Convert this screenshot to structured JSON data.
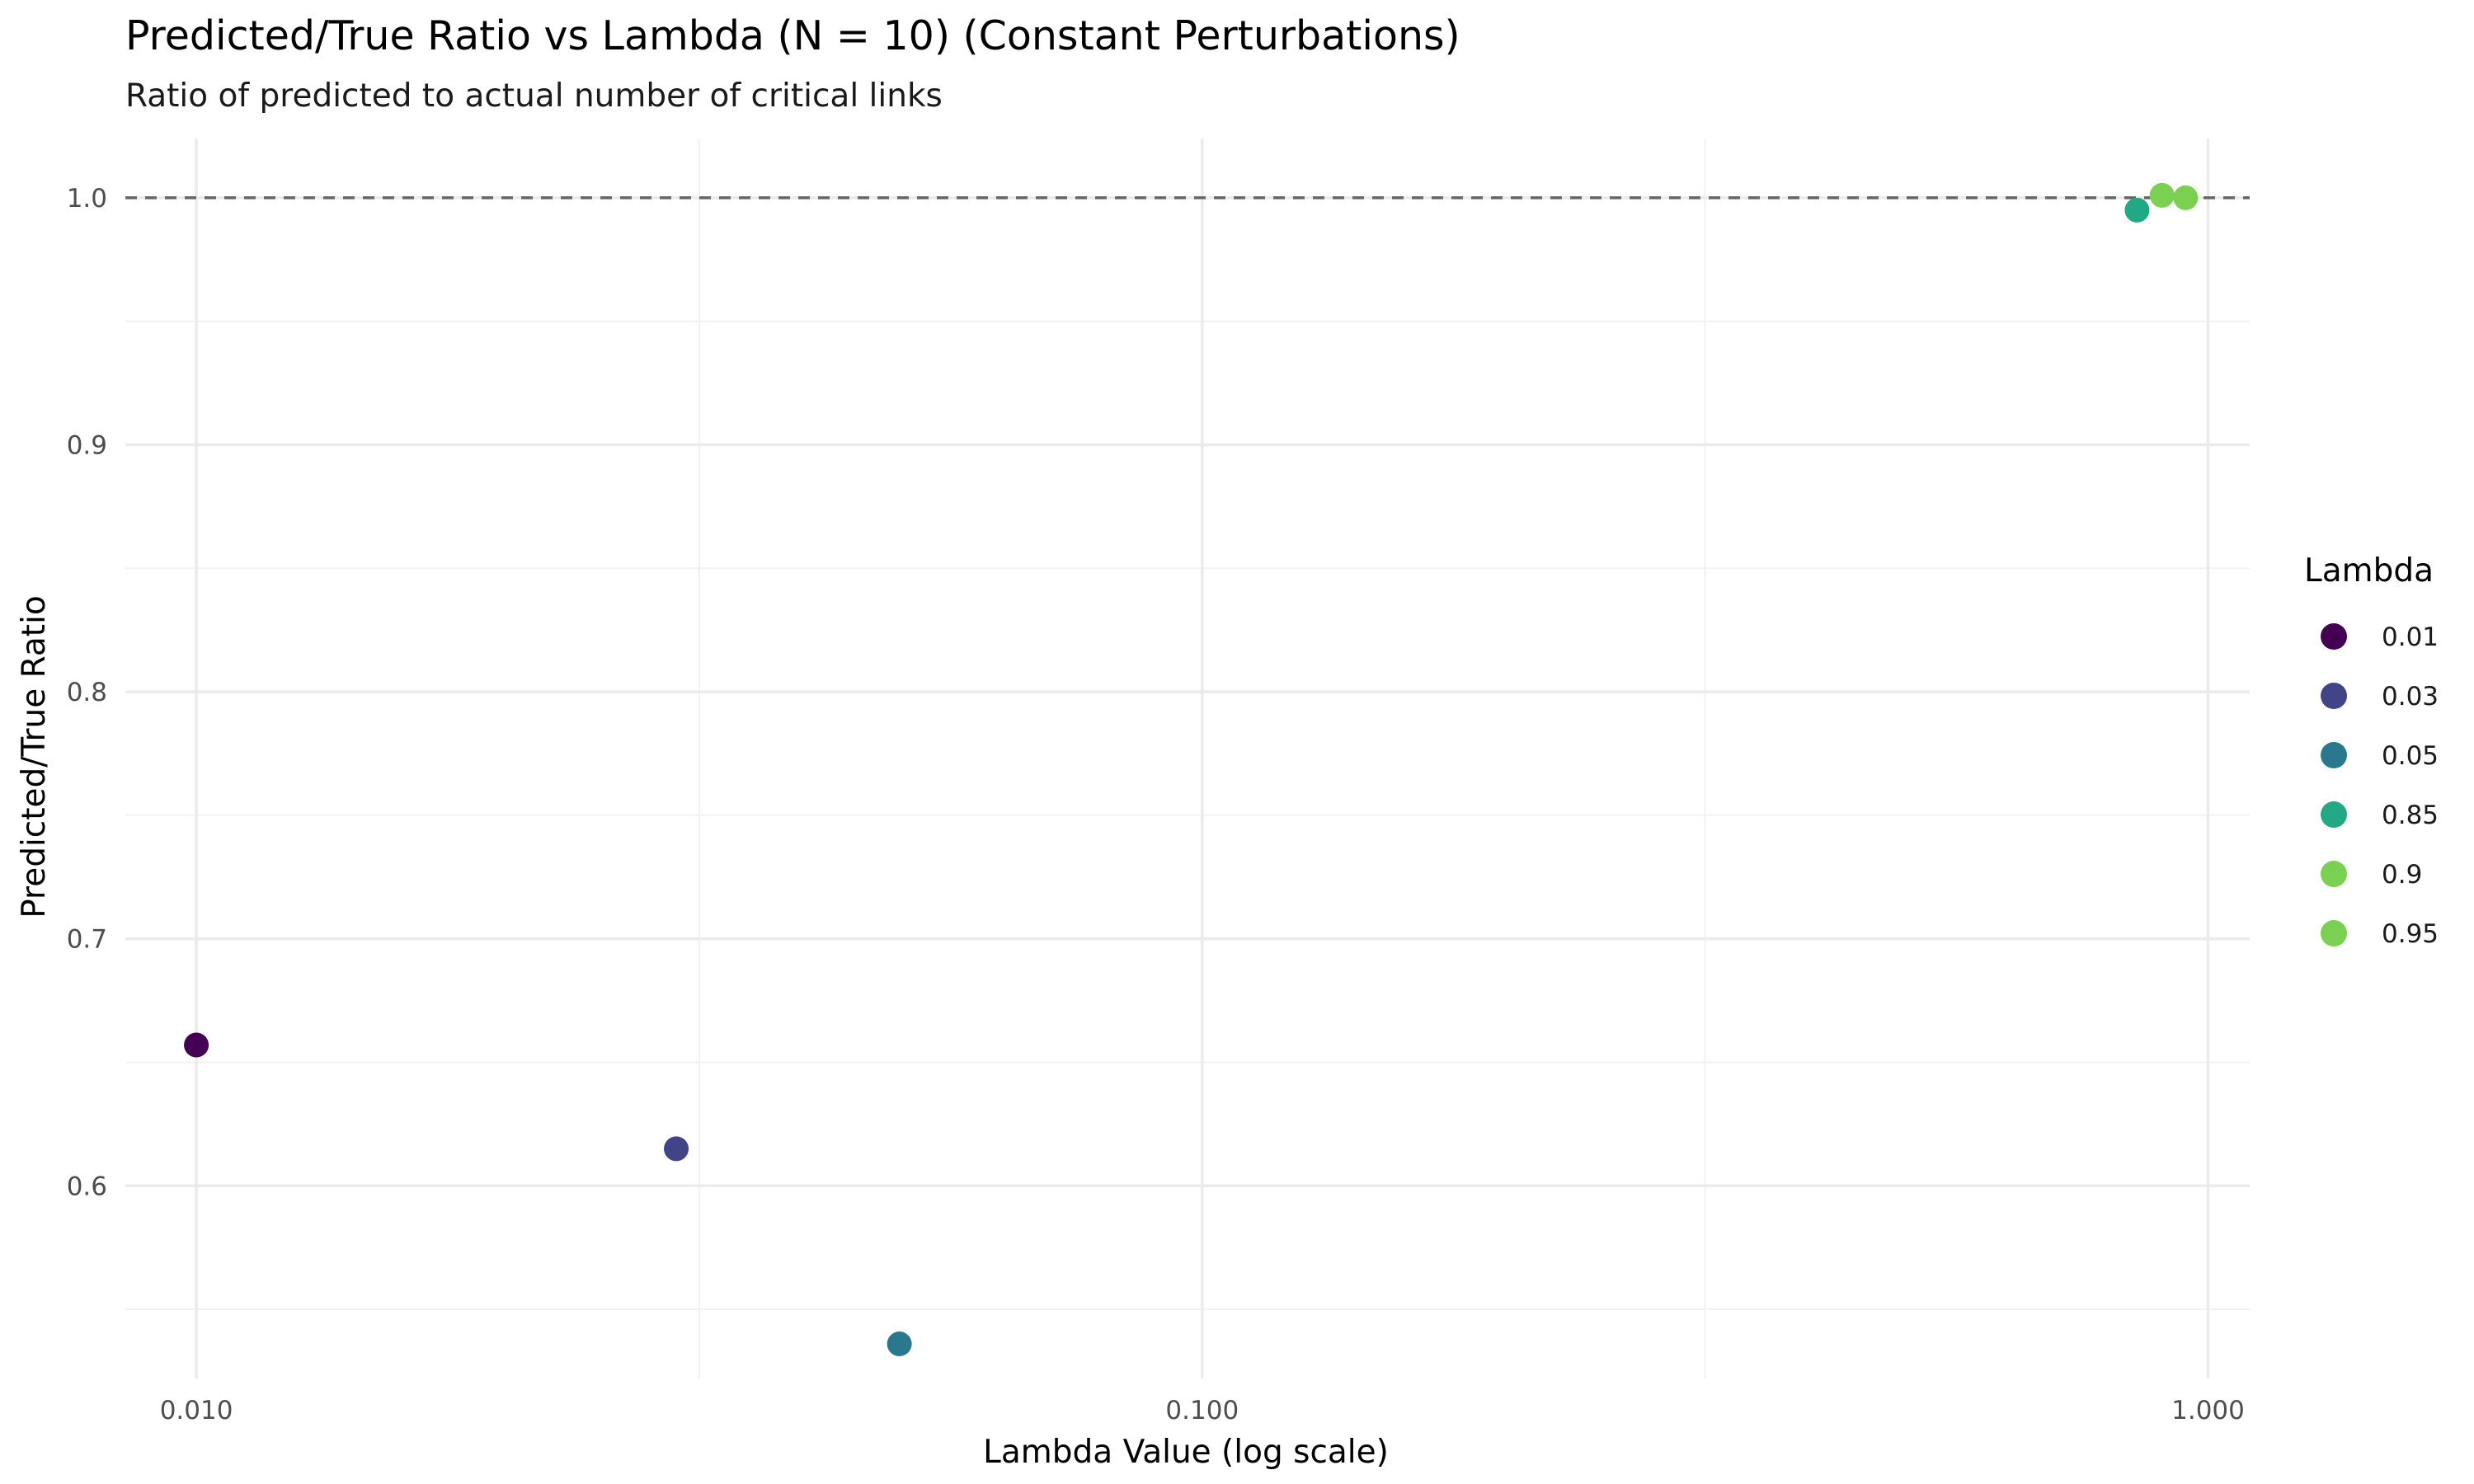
{
  "chart_data": {
    "type": "scatter",
    "title": "Predicted/True Ratio vs Lambda (N = 10) (Constant Perturbations)",
    "subtitle": "Ratio of predicted to actual number of critical links",
    "xlabel": "Lambda Value (log scale)",
    "ylabel": "Predicted/True Ratio",
    "x_scale": "log10",
    "xlim": [
      0.0085,
      1.1
    ],
    "ylim": [
      0.522,
      1.024
    ],
    "x_ticks": [
      0.01,
      0.1,
      1.0
    ],
    "x_tick_labels": [
      "0.010",
      "0.100",
      "1.000"
    ],
    "y_ticks": [
      0.6,
      0.7,
      0.8,
      0.9,
      1.0
    ],
    "y_tick_labels": [
      "0.6",
      "0.7",
      "0.8",
      "0.9",
      "1.0"
    ],
    "grid": true,
    "reference_line": {
      "y": 1.0,
      "style": "dashed",
      "color": "#666666"
    },
    "legend": {
      "title": "Lambda",
      "placement": "right",
      "entries": [
        "0.01",
        "0.03",
        "0.05",
        "0.85",
        "0.9",
        "0.95"
      ]
    },
    "points": [
      {
        "x": 0.01,
        "y": 0.657,
        "color": "#440154",
        "label": "0.01"
      },
      {
        "x": 0.03,
        "y": 0.615,
        "color": "#414487",
        "label": "0.03"
      },
      {
        "x": 0.05,
        "y": 0.536,
        "color": "#2A788E",
        "label": "0.05"
      },
      {
        "x": 0.85,
        "y": 0.995,
        "color": "#22A884",
        "label": "0.85"
      },
      {
        "x": 0.9,
        "y": 1.001,
        "color": "#7AD151",
        "label": "0.9"
      },
      {
        "x": 0.95,
        "y": 1.0,
        "color": "#7AD151",
        "label": "0.95"
      }
    ],
    "palette": [
      "#440154",
      "#414487",
      "#2A788E",
      "#22A884",
      "#2FB47C",
      "#7AD151"
    ]
  }
}
